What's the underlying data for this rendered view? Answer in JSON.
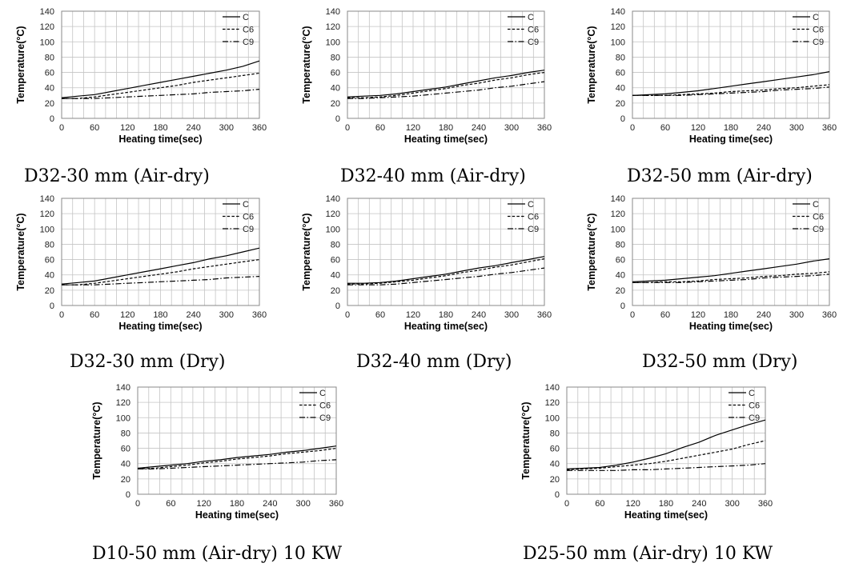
{
  "colors": {
    "grid": "#c4c4c4",
    "frame": "#888888",
    "line": "#000000",
    "background": "#ffffff"
  },
  "chart_data": [
    {
      "type": "line",
      "title": "D32-30 mm (Air-dry)",
      "xlabel": "Heating time(sec)",
      "ylabel": "Temperature(°C)",
      "xlim": [
        0,
        360
      ],
      "ylim": [
        0,
        140
      ],
      "xticks": [
        0,
        60,
        120,
        180,
        240,
        300,
        360
      ],
      "yticks": [
        0,
        20,
        40,
        60,
        80,
        100,
        120,
        140
      ],
      "x": [
        0,
        30,
        60,
        90,
        120,
        150,
        180,
        210,
        240,
        270,
        300,
        330,
        360
      ],
      "series": [
        {
          "name": "C",
          "values": [
            27,
            29,
            31,
            35,
            39,
            43,
            47,
            51,
            55,
            59,
            63,
            68,
            75
          ]
        },
        {
          "name": "C6",
          "values": [
            26,
            26,
            28,
            31,
            34,
            37,
            40,
            43,
            47,
            50,
            53,
            56,
            59
          ]
        },
        {
          "name": "C9",
          "values": [
            26,
            26,
            26,
            27,
            28,
            29,
            30,
            31,
            32,
            34,
            35,
            36,
            38
          ]
        }
      ],
      "legend": "top-right"
    },
    {
      "type": "line",
      "title": "D32-40 mm (Air-dry)",
      "xlabel": "Heating time(sec)",
      "ylabel": "Temperature(°C)",
      "xlim": [
        0,
        360
      ],
      "ylim": [
        0,
        140
      ],
      "xticks": [
        0,
        60,
        120,
        180,
        240,
        300,
        360
      ],
      "yticks": [
        0,
        20,
        40,
        60,
        80,
        100,
        120,
        140
      ],
      "x": [
        0,
        30,
        60,
        90,
        120,
        150,
        180,
        210,
        240,
        270,
        300,
        330,
        360
      ],
      "series": [
        {
          "name": "C",
          "values": [
            28,
            29,
            30,
            32,
            35,
            38,
            41,
            45,
            49,
            53,
            56,
            60,
            63
          ]
        },
        {
          "name": "C6",
          "values": [
            27,
            27,
            28,
            30,
            33,
            36,
            39,
            43,
            46,
            50,
            53,
            57,
            60
          ]
        },
        {
          "name": "C9",
          "values": [
            26,
            26,
            27,
            28,
            29,
            31,
            33,
            35,
            37,
            40,
            42,
            45,
            48
          ]
        }
      ],
      "legend": "top-right"
    },
    {
      "type": "line",
      "title": "D32-50 mm (Air-dry)",
      "xlabel": "Heating time(sec)",
      "ylabel": "Temperature(°C)",
      "xlim": [
        0,
        360
      ],
      "ylim": [
        0,
        140
      ],
      "xticks": [
        0,
        60,
        120,
        180,
        240,
        300,
        360
      ],
      "yticks": [
        0,
        20,
        40,
        60,
        80,
        100,
        120,
        140
      ],
      "x": [
        0,
        30,
        60,
        90,
        120,
        150,
        180,
        210,
        240,
        270,
        300,
        330,
        360
      ],
      "series": [
        {
          "name": "C",
          "values": [
            30,
            31,
            32,
            34,
            36,
            39,
            42,
            45,
            48,
            51,
            54,
            57,
            61
          ]
        },
        {
          "name": "C6",
          "values": [
            30,
            30,
            30,
            31,
            32,
            33,
            35,
            36,
            37,
            39,
            40,
            42,
            44
          ]
        },
        {
          "name": "C9",
          "values": [
            30,
            30,
            30,
            30,
            31,
            32,
            33,
            34,
            35,
            37,
            38,
            39,
            41
          ]
        }
      ],
      "legend": "top-right"
    },
    {
      "type": "line",
      "title": "D32-30 mm (Dry)",
      "xlabel": "Heating time(sec)",
      "ylabel": "Temperature(°C)",
      "xlim": [
        0,
        360
      ],
      "ylim": [
        0,
        140
      ],
      "xticks": [
        0,
        60,
        120,
        180,
        240,
        300,
        360
      ],
      "yticks": [
        0,
        20,
        40,
        60,
        80,
        100,
        120,
        140
      ],
      "x": [
        0,
        30,
        60,
        90,
        120,
        150,
        180,
        210,
        240,
        270,
        300,
        330,
        360
      ],
      "series": [
        {
          "name": "C",
          "values": [
            28,
            30,
            32,
            36,
            40,
            44,
            48,
            52,
            56,
            61,
            65,
            70,
            75
          ]
        },
        {
          "name": "C6",
          "values": [
            27,
            27,
            29,
            32,
            35,
            38,
            41,
            44,
            48,
            51,
            54,
            57,
            60
          ]
        },
        {
          "name": "C9",
          "values": [
            27,
            27,
            27,
            28,
            29,
            30,
            31,
            32,
            33,
            34,
            36,
            37,
            38
          ]
        }
      ],
      "legend": "top-right"
    },
    {
      "type": "line",
      "title": "D32-40 mm (Dry)",
      "xlabel": "Heating time(sec)",
      "ylabel": "Temperature(°C)",
      "xlim": [
        0,
        360
      ],
      "ylim": [
        0,
        140
      ],
      "xticks": [
        0,
        60,
        120,
        180,
        240,
        300,
        360
      ],
      "yticks": [
        0,
        20,
        40,
        60,
        80,
        100,
        120,
        140
      ],
      "x": [
        0,
        30,
        60,
        90,
        120,
        150,
        180,
        210,
        240,
        270,
        300,
        330,
        360
      ],
      "series": [
        {
          "name": "C",
          "values": [
            29,
            29,
            30,
            32,
            35,
            38,
            41,
            45,
            49,
            52,
            56,
            60,
            64
          ]
        },
        {
          "name": "C6",
          "values": [
            28,
            28,
            29,
            31,
            33,
            36,
            39,
            43,
            46,
            50,
            53,
            57,
            61
          ]
        },
        {
          "name": "C9",
          "values": [
            27,
            27,
            27,
            28,
            30,
            32,
            34,
            36,
            38,
            41,
            43,
            46,
            49
          ]
        }
      ],
      "legend": "top-right"
    },
    {
      "type": "line",
      "title": "D32-50 mm (Dry)",
      "xlabel": "Heating time(sec)",
      "ylabel": "Temperature(°C)",
      "xlim": [
        0,
        360
      ],
      "ylim": [
        0,
        140
      ],
      "xticks": [
        0,
        60,
        120,
        180,
        240,
        300,
        360
      ],
      "yticks": [
        0,
        20,
        40,
        60,
        80,
        100,
        120,
        140
      ],
      "x": [
        0,
        30,
        60,
        90,
        120,
        150,
        180,
        210,
        240,
        270,
        300,
        330,
        360
      ],
      "series": [
        {
          "name": "C",
          "values": [
            31,
            32,
            33,
            35,
            37,
            39,
            42,
            45,
            48,
            51,
            54,
            58,
            61
          ]
        },
        {
          "name": "C6",
          "values": [
            30,
            30,
            31,
            31,
            32,
            34,
            35,
            36,
            38,
            39,
            41,
            42,
            44
          ]
        },
        {
          "name": "C9",
          "values": [
            30,
            30,
            30,
            30,
            31,
            32,
            33,
            34,
            36,
            37,
            38,
            39,
            41
          ]
        }
      ],
      "legend": "top-right"
    },
    {
      "type": "line",
      "title": "D10-50 mm (Air-dry) 10 KW",
      "xlabel": "Heating time(sec)",
      "ylabel": "Temperature(°C)",
      "xlim": [
        0,
        360
      ],
      "ylim": [
        0,
        140
      ],
      "xticks": [
        0,
        60,
        120,
        180,
        240,
        300,
        360
      ],
      "yticks": [
        0,
        20,
        40,
        60,
        80,
        100,
        120,
        140
      ],
      "x": [
        0,
        30,
        60,
        90,
        120,
        150,
        180,
        210,
        240,
        270,
        300,
        330,
        360
      ],
      "series": [
        {
          "name": "C",
          "values": [
            34,
            36,
            38,
            40,
            43,
            45,
            48,
            50,
            52,
            55,
            57,
            60,
            63
          ]
        },
        {
          "name": "C6",
          "values": [
            33,
            34,
            36,
            38,
            41,
            43,
            46,
            48,
            50,
            53,
            55,
            57,
            60
          ]
        },
        {
          "name": "C9",
          "values": [
            33,
            33,
            34,
            35,
            36,
            37,
            38,
            39,
            40,
            41,
            42,
            44,
            45
          ]
        }
      ],
      "legend": "top-right"
    },
    {
      "type": "line",
      "title": "D25-50 mm (Air-dry) 10 KW",
      "xlabel": "Heating time(sec)",
      "ylabel": "Temperature(°C)",
      "xlim": [
        0,
        360
      ],
      "ylim": [
        0,
        140
      ],
      "xticks": [
        0,
        60,
        120,
        180,
        240,
        300,
        360
      ],
      "yticks": [
        0,
        20,
        40,
        60,
        80,
        100,
        120,
        140
      ],
      "x": [
        0,
        30,
        60,
        90,
        120,
        150,
        180,
        210,
        240,
        270,
        300,
        330,
        360
      ],
      "series": [
        {
          "name": "C",
          "values": [
            33,
            34,
            35,
            38,
            42,
            47,
            53,
            61,
            68,
            77,
            84,
            91,
            97
          ]
        },
        {
          "name": "C6",
          "values": [
            32,
            33,
            34,
            36,
            38,
            40,
            43,
            47,
            51,
            55,
            59,
            65,
            70
          ]
        },
        {
          "name": "C9",
          "values": [
            31,
            31,
            31,
            31,
            32,
            32,
            33,
            34,
            35,
            36,
            37,
            38,
            40
          ]
        }
      ],
      "legend": "top-right"
    }
  ]
}
